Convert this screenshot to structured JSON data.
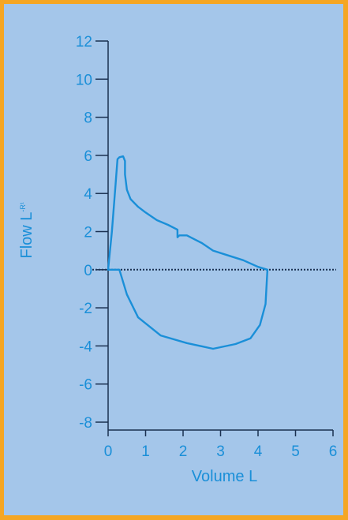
{
  "chart_data": {
    "type": "line",
    "xlabel": "Volume L",
    "ylabel_main": "Flow L",
    "ylabel_sup": "-R¹",
    "xlim": [
      0,
      6
    ],
    "ylim": [
      -8,
      12
    ],
    "x_ticks": [
      0,
      1,
      2,
      3,
      4,
      5,
      6
    ],
    "y_ticks": [
      -8,
      -6,
      -4,
      -2,
      0,
      2,
      4,
      6,
      8,
      10,
      12
    ],
    "x_tick_labels": [
      "0",
      "1",
      "2",
      "3",
      "4",
      "5",
      "6"
    ],
    "y_tick_labels": [
      "-8",
      "-6",
      "-4",
      "-2",
      "0",
      "2",
      "4",
      "6",
      "8",
      "10",
      "12"
    ],
    "zero_line": "dotted",
    "grid": false,
    "series": [
      {
        "color": "#1a8fd8",
        "x": [
          0.0,
          0.1,
          0.2,
          0.25,
          0.3,
          0.4,
          0.45,
          0.45,
          0.5,
          0.6,
          0.8,
          1.0,
          1.3,
          1.6,
          1.85,
          1.85,
          1.9,
          2.1,
          2.3,
          2.5,
          2.8,
          3.2,
          3.6,
          4.0,
          4.25,
          4.2,
          4.05,
          3.8,
          3.4,
          2.8,
          2.1,
          1.4,
          0.8,
          0.5,
          0.3,
          0.0
        ],
        "y": [
          0.0,
          2.0,
          4.5,
          5.8,
          5.9,
          5.95,
          5.7,
          5.0,
          4.2,
          3.7,
          3.3,
          3.0,
          2.6,
          2.35,
          2.1,
          1.7,
          1.8,
          1.8,
          1.6,
          1.4,
          1.0,
          0.75,
          0.5,
          0.15,
          0.0,
          -1.8,
          -2.9,
          -3.6,
          -3.9,
          -4.15,
          -3.85,
          -3.45,
          -2.5,
          -1.3,
          0.0,
          0.0
        ]
      }
    ]
  }
}
